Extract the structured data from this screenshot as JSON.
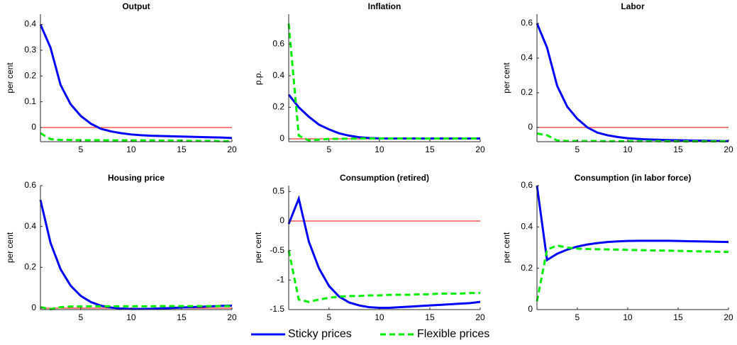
{
  "chart_data": [
    {
      "type": "line",
      "title": "Output",
      "ylabel": "per cent",
      "x": [
        1,
        2,
        3,
        4,
        5,
        6,
        7,
        8,
        9,
        10,
        11,
        12,
        13,
        14,
        15,
        16,
        17,
        18,
        19,
        20
      ],
      "xlim": [
        1,
        20
      ],
      "xticks": [
        5,
        10,
        15,
        20
      ],
      "ylim": [
        -0.055,
        0.44
      ],
      "yticks": [
        0,
        0.1,
        0.2,
        0.3,
        0.4
      ],
      "hline": 0,
      "hline_color": "#ff0000",
      "series": [
        {
          "name": "Sticky prices",
          "color": "#0000ff",
          "line_style": "solid",
          "values": [
            0.4,
            0.31,
            0.165,
            0.09,
            0.045,
            0.015,
            -0.005,
            -0.015,
            -0.022,
            -0.027,
            -0.03,
            -0.032,
            -0.033,
            -0.034,
            -0.035,
            -0.036,
            -0.037,
            -0.038,
            -0.039,
            -0.041
          ]
        },
        {
          "name": "Flexible prices",
          "color": "#00ee00",
          "line_style": "dashed",
          "values": [
            -0.022,
            -0.045,
            -0.048,
            -0.048,
            -0.049,
            -0.049,
            -0.049,
            -0.05,
            -0.05,
            -0.05,
            -0.05,
            -0.05,
            -0.051,
            -0.051,
            -0.051,
            -0.052,
            -0.052,
            -0.052,
            -0.053,
            -0.053
          ]
        }
      ]
    },
    {
      "type": "line",
      "title": "Inflation",
      "ylabel": "p.p.",
      "x": [
        1,
        2,
        3,
        4,
        5,
        6,
        7,
        8,
        9,
        10,
        11,
        12,
        13,
        14,
        15,
        16,
        17,
        18,
        19,
        20
      ],
      "xlim": [
        1,
        20
      ],
      "xticks": [
        5,
        10,
        15,
        20
      ],
      "ylim": [
        -0.018,
        0.79
      ],
      "yticks": [
        0,
        0.2,
        0.4,
        0.6
      ],
      "hline": 0,
      "hline_color": "#ff0000",
      "series": [
        {
          "color": "#0000ff",
          "line_style": "solid",
          "values": [
            0.28,
            0.2,
            0.14,
            0.09,
            0.06,
            0.035,
            0.02,
            0.01,
            0.005,
            0.003,
            0.002,
            0.002,
            0.002,
            0.002,
            0.002,
            0.002,
            0.002,
            0.002,
            0.002,
            0.002
          ]
        },
        {
          "color": "#00ee00",
          "line_style": "dashed",
          "values": [
            0.73,
            0.02,
            -0.01,
            -0.005,
            0,
            0,
            0.001,
            0.002,
            0.002,
            0.002,
            0.002,
            0.002,
            0.002,
            0.002,
            0.002,
            0.002,
            0.002,
            0.002,
            0.002,
            0.002
          ]
        }
      ]
    },
    {
      "type": "line",
      "title": "Labor",
      "ylabel": "per cent",
      "x": [
        1,
        2,
        3,
        4,
        5,
        6,
        7,
        8,
        9,
        10,
        11,
        12,
        13,
        14,
        15,
        16,
        17,
        18,
        19,
        20
      ],
      "xlim": [
        1,
        20
      ],
      "xticks": [
        5,
        10,
        15,
        20
      ],
      "ylim": [
        -0.082,
        0.653
      ],
      "yticks": [
        0,
        0.2,
        0.4,
        0.6
      ],
      "hline": 0,
      "hline_color": "#ff0000",
      "series": [
        {
          "color": "#0000ff",
          "line_style": "solid",
          "values": [
            0.6,
            0.46,
            0.24,
            0.12,
            0.05,
            0.0,
            -0.03,
            -0.045,
            -0.055,
            -0.062,
            -0.066,
            -0.069,
            -0.071,
            -0.073,
            -0.074,
            -0.075,
            -0.076,
            -0.077,
            -0.078,
            -0.079
          ]
        },
        {
          "color": "#00ee00",
          "line_style": "dashed",
          "values": [
            -0.035,
            -0.045,
            -0.075,
            -0.078,
            -0.078,
            -0.078,
            -0.078,
            -0.079,
            -0.079,
            -0.079,
            -0.079,
            -0.079,
            -0.079,
            -0.08,
            -0.08,
            -0.08,
            -0.08,
            -0.08,
            -0.08,
            -0.08
          ]
        }
      ]
    },
    {
      "type": "line",
      "title": "Housing price",
      "ylabel": "per cent",
      "x": [
        1,
        2,
        3,
        4,
        5,
        6,
        7,
        8,
        9,
        10,
        11,
        12,
        13,
        14,
        15,
        16,
        17,
        18,
        19,
        20
      ],
      "xlim": [
        1,
        20
      ],
      "xticks": [
        5,
        10,
        15,
        20
      ],
      "ylim": [
        -0.007,
        0.6
      ],
      "yticks": [
        0,
        0.2,
        0.4,
        0.6
      ],
      "hline": 0,
      "hline_color": "#ff0000",
      "series": [
        {
          "color": "#0000ff",
          "line_style": "solid",
          "values": [
            0.53,
            0.32,
            0.19,
            0.11,
            0.06,
            0.03,
            0.012,
            0.003,
            -0.002,
            -0.004,
            -0.004,
            -0.003,
            -0.001,
            0.001,
            0.003,
            0.005,
            0.007,
            0.009,
            0.011,
            0.012
          ]
        },
        {
          "color": "#00ee00",
          "line_style": "dashed",
          "values": [
            0.005,
            -0.005,
            0.005,
            0.008,
            0.008,
            0.009,
            0.009,
            0.009,
            0.009,
            0.009,
            0.009,
            0.009,
            0.01,
            0.01,
            0.01,
            0.01,
            0.01,
            0.01,
            0.01,
            0.01
          ]
        }
      ]
    },
    {
      "type": "line",
      "title": "Consumption (retired)",
      "ylabel": "per cent",
      "x": [
        1,
        2,
        3,
        4,
        5,
        6,
        7,
        8,
        9,
        10,
        11,
        12,
        13,
        14,
        15,
        16,
        17,
        18,
        19,
        20
      ],
      "xlim": [
        1,
        20
      ],
      "xticks": [
        5,
        10,
        15,
        20
      ],
      "ylim": [
        -1.5,
        0.6
      ],
      "yticks": [
        -1.5,
        -1,
        -0.5,
        0,
        0.5
      ],
      "hline": 0,
      "hline_color": "#ff0000",
      "series": [
        {
          "color": "#0000ff",
          "line_style": "solid",
          "values": [
            -0.05,
            0.38,
            -0.35,
            -0.8,
            -1.1,
            -1.28,
            -1.38,
            -1.43,
            -1.46,
            -1.47,
            -1.47,
            -1.46,
            -1.45,
            -1.44,
            -1.43,
            -1.42,
            -1.41,
            -1.4,
            -1.39,
            -1.37
          ]
        },
        {
          "color": "#00ee00",
          "line_style": "dashed",
          "values": [
            -0.5,
            -1.33,
            -1.37,
            -1.33,
            -1.3,
            -1.28,
            -1.27,
            -1.27,
            -1.26,
            -1.26,
            -1.25,
            -1.25,
            -1.25,
            -1.24,
            -1.24,
            -1.23,
            -1.23,
            -1.23,
            -1.22,
            -1.22
          ]
        }
      ]
    },
    {
      "type": "line",
      "title": "Consumption (in labor force)",
      "ylabel": "per cent",
      "x": [
        1,
        2,
        3,
        4,
        5,
        6,
        7,
        8,
        9,
        10,
        11,
        12,
        13,
        14,
        15,
        16,
        17,
        18,
        19,
        20
      ],
      "xlim": [
        1,
        20
      ],
      "xticks": [
        5,
        10,
        15,
        20
      ],
      "ylim": [
        0,
        0.6
      ],
      "yticks": [
        0,
        0.2,
        0.4,
        0.6
      ],
      "hline": 0,
      "hline_color": "#ff0000",
      "series": [
        {
          "color": "#0000ff",
          "line_style": "solid",
          "values": [
            0.6,
            0.24,
            0.27,
            0.29,
            0.305,
            0.315,
            0.322,
            0.327,
            0.33,
            0.332,
            0.333,
            0.333,
            0.333,
            0.333,
            0.332,
            0.331,
            0.33,
            0.329,
            0.328,
            0.327
          ]
        },
        {
          "color": "#00ee00",
          "line_style": "dashed",
          "values": [
            0.04,
            0.29,
            0.31,
            0.3,
            0.295,
            0.293,
            0.292,
            0.291,
            0.29,
            0.289,
            0.288,
            0.287,
            0.286,
            0.285,
            0.284,
            0.283,
            0.282,
            0.281,
            0.28,
            0.279
          ]
        }
      ]
    }
  ]
}
